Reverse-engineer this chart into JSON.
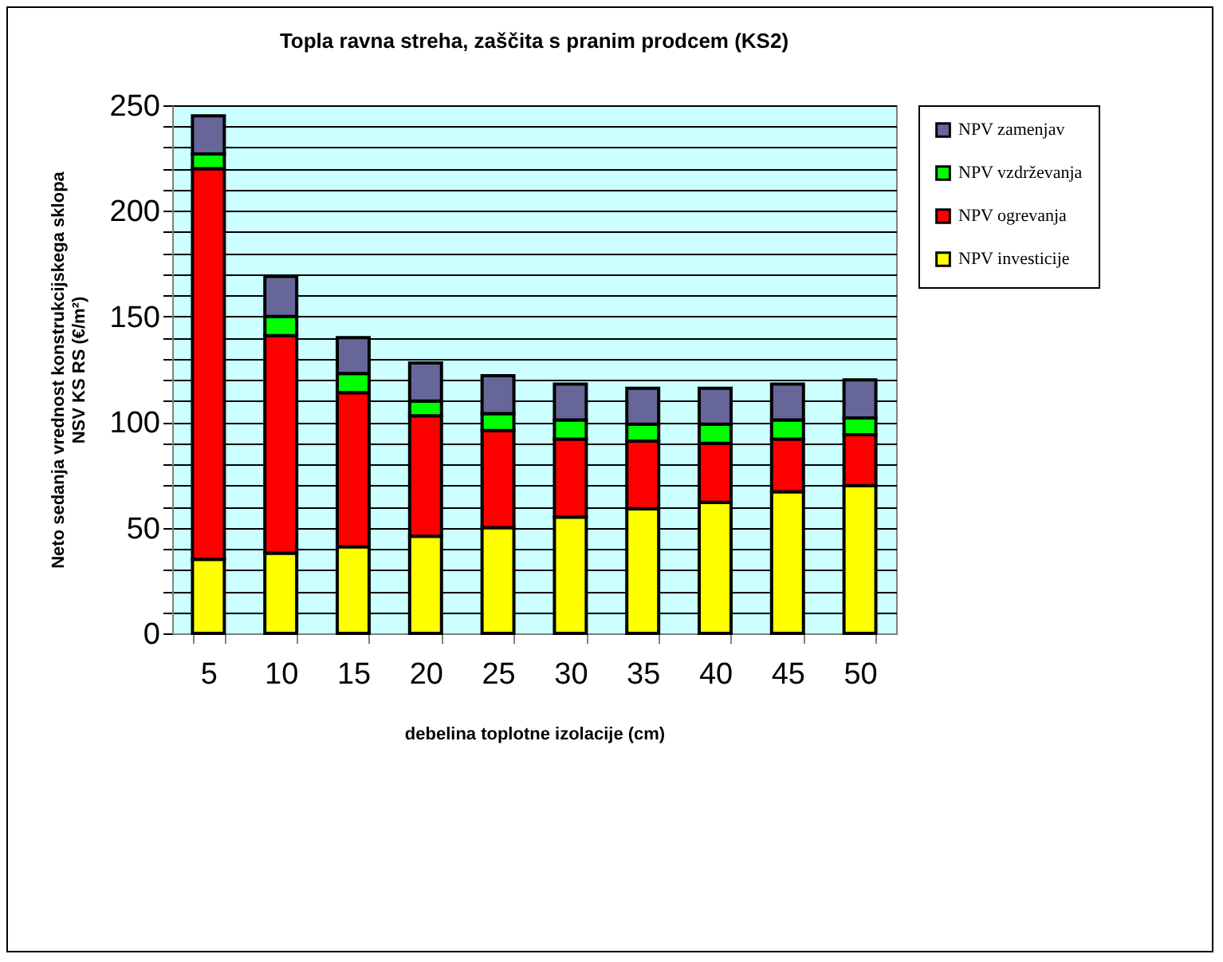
{
  "chart_data": {
    "type": "bar",
    "stacked": true,
    "title": "Topla ravna streha, zaščita s pranim prodcem (KS2)",
    "xlabel": "debelina toplotne izolacije (cm)",
    "ylabel": "Neto sedanja vrednost konstrukcijskega sklopa\nNSV KS RS (€/m²)",
    "categories": [
      "5",
      "10",
      "15",
      "20",
      "25",
      "30",
      "35",
      "40",
      "45",
      "50"
    ],
    "series": [
      {
        "name": "NPV investicije",
        "color": "#ffff00",
        "values": [
          35,
          38,
          41,
          46,
          50,
          55,
          59,
          62,
          67,
          70
        ]
      },
      {
        "name": "NPV ogrevanja",
        "color": "#ff0000",
        "values": [
          185,
          103,
          73,
          57,
          46,
          37,
          32,
          28,
          25,
          24
        ]
      },
      {
        "name": "NPV vzdrževanja",
        "color": "#00ff00",
        "values": [
          7,
          9,
          9,
          7,
          8,
          9,
          8,
          9,
          9,
          8
        ]
      },
      {
        "name": "NPV zamenjav",
        "color": "#666699",
        "values": [
          18,
          19,
          17,
          18,
          18,
          17,
          17,
          17,
          17,
          18
        ]
      }
    ],
    "ylim": [
      0,
      250
    ],
    "yticks": [
      0,
      {
        "value": 10,
        "label": null
      },
      {
        "value": 20,
        "label": null
      },
      {
        "value": 30,
        "label": null
      },
      {
        "value": 40,
        "label": null
      },
      50,
      {
        "value": 60,
        "label": null
      },
      {
        "value": 70,
        "label": null
      },
      {
        "value": 80,
        "label": null
      },
      {
        "value": 90,
        "label": null
      },
      100,
      {
        "value": 110,
        "label": null
      },
      {
        "value": 120,
        "label": null
      },
      {
        "value": 130,
        "label": null
      },
      {
        "value": 140,
        "label": null
      },
      150,
      {
        "value": 160,
        "label": null
      },
      {
        "value": 170,
        "label": null
      },
      {
        "value": 180,
        "label": null
      },
      {
        "value": 190,
        "label": null
      },
      200,
      {
        "value": 210,
        "label": null
      },
      {
        "value": 220,
        "label": null
      },
      {
        "value": 230,
        "label": null
      },
      {
        "value": 240,
        "label": null
      },
      250
    ],
    "grid": "y",
    "legend": "right"
  }
}
